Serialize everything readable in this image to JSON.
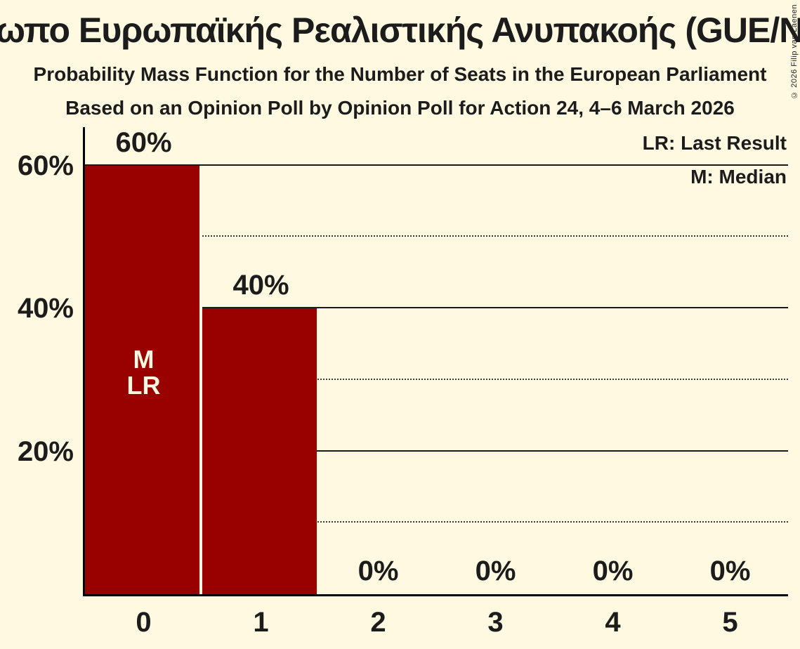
{
  "header": {
    "title": "Μέτωπο Ευρωπαϊκής Ρεαλιστικής Ανυπακοής (GUE/NGL)",
    "subtitle1": "Probability Mass Function for the Number of Seats in the European Parliament",
    "subtitle2": "Based on an Opinion Poll by Opinion Poll for Action 24, 4–6 March 2026"
  },
  "copyright": "© 2026 Filip van Laenen",
  "legend": {
    "last_result": "LR: Last Result",
    "median": "M: Median"
  },
  "colors": {
    "background": "#FFF9E1",
    "bar": "#990000",
    "text": "#1C1C1C"
  },
  "bar_annotation": {
    "bar_index": 0,
    "line1": "M",
    "line2": "LR"
  },
  "chart_data": {
    "type": "bar",
    "title": "Μέτωπο Ευρωπαϊκής Ρεαλιστικής Ανυπακοής (GUE/NGL)",
    "subtitle": "Probability Mass Function for the Number of Seats in the European Parliament",
    "source_note": "Based on an Opinion Poll by Opinion Poll for Action 24, 4–6 March 2026",
    "categories": [
      "0",
      "1",
      "2",
      "3",
      "4",
      "5"
    ],
    "values": [
      60,
      40,
      0,
      0,
      0,
      0
    ],
    "bar_labels": [
      "60%",
      "40%",
      "0%",
      "0%",
      "0%",
      "0%"
    ],
    "y_tick_labels": [
      "60%",
      "40%",
      "20%"
    ],
    "ylim": [
      0,
      65
    ],
    "y_major_gridlines_pct": [
      60,
      40,
      20
    ],
    "y_minor_gridlines_pct": [
      50,
      30,
      10
    ],
    "grid": "horizontal",
    "legend_position": "top-right",
    "median_bar": 0,
    "last_result_bar": 0
  }
}
